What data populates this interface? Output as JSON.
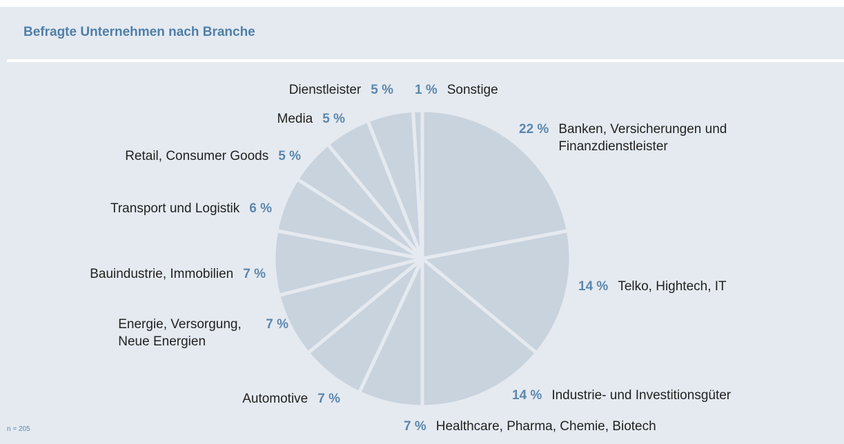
{
  "chart_data": {
    "type": "pie",
    "title": "Befragte Unternehmen nach Branche",
    "categories": [
      "Banken, Versicherungen und Finanzdienstleister",
      "Telko, Hightech, IT",
      "Industrie- und Investitionsgüter",
      "Healthcare, Pharma, Chemie, Biotech",
      "Automotive",
      "Energie, Versorgung, Neue Energien",
      "Bauindustrie, Immobilien",
      "Transport und Logistik",
      "Retail, Consumer Goods",
      "Media",
      "Dienstleister",
      "Sonstige"
    ],
    "values": [
      22,
      14,
      14,
      7,
      7,
      7,
      7,
      6,
      5,
      5,
      5,
      1
    ],
    "value_labels": [
      "22 %",
      "14 %",
      "14 %",
      "7 %",
      "7 %",
      "7 %",
      "7 %",
      "6 %",
      "5 %",
      "5 %",
      "5 %",
      "1 %"
    ],
    "color": "#c9d3de",
    "note": "n = 205"
  }
}
